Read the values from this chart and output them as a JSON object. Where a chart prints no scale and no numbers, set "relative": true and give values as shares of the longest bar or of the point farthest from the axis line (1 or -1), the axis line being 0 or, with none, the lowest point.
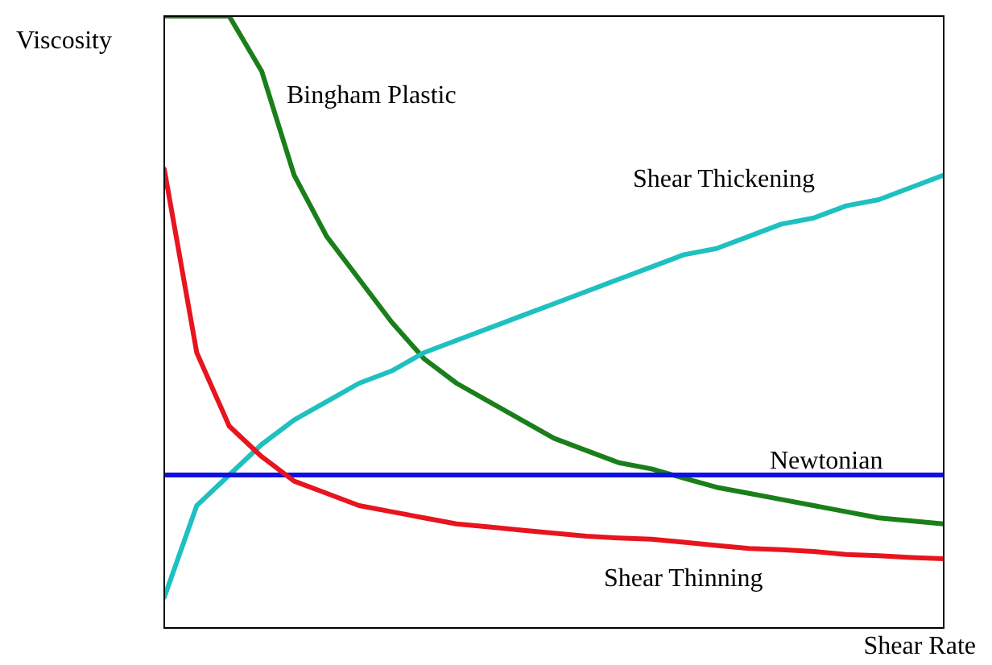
{
  "chart_data": {
    "type": "line",
    "relative": true,
    "xlabel": "Shear Rate",
    "ylabel": "Viscosity",
    "marker": "none",
    "line_style": "solid",
    "categories": [
      null,
      null,
      null,
      null,
      null,
      null,
      null,
      null,
      null,
      null,
      null,
      null,
      null,
      null,
      null,
      null,
      null,
      null,
      null,
      null,
      null,
      null,
      null,
      null,
      null
    ],
    "series": [
      {
        "name": "Bingham Plastic",
        "color": "#1a7f1a",
        "values": [
          1,
          1,
          1,
          0.91,
          0.74,
          0.64,
          0.57,
          0.5,
          0.44,
          0.4,
          0.37,
          0.34,
          0.31,
          0.29,
          0.27,
          0.26,
          0.245,
          0.23,
          0.22,
          0.21,
          0.2,
          0.19,
          0.18,
          0.175,
          0.17
        ]
      },
      {
        "name": "Shear Thickening",
        "color": "#1fc0c0",
        "values": [
          0.05,
          0.2,
          0.25,
          0.3,
          0.34,
          0.37,
          0.4,
          0.42,
          0.45,
          0.47,
          0.49,
          0.51,
          0.53,
          0.55,
          0.57,
          0.59,
          0.61,
          0.62,
          0.64,
          0.66,
          0.67,
          0.69,
          0.7,
          0.72,
          0.74
        ]
      },
      {
        "name": "Newtonian",
        "color": "#1010e0",
        "values": [
          0.25,
          0.25,
          0.25,
          0.25,
          0.25,
          0.25,
          0.25,
          0.25,
          0.25,
          0.25,
          0.25,
          0.25,
          0.25,
          0.25,
          0.25,
          0.25,
          0.25,
          0.25,
          0.25,
          0.25,
          0.25,
          0.25,
          0.25,
          0.25,
          0.25
        ]
      },
      {
        "name": "Shear Thinning",
        "color": "#e8141e",
        "values": [
          0.75,
          0.45,
          0.33,
          0.28,
          0.24,
          0.22,
          0.2,
          0.19,
          0.18,
          0.17,
          0.165,
          0.16,
          0.155,
          0.15,
          0.147,
          0.145,
          0.14,
          0.135,
          0.13,
          0.128,
          0.125,
          0.12,
          0.118,
          0.115,
          0.113
        ]
      }
    ]
  }
}
